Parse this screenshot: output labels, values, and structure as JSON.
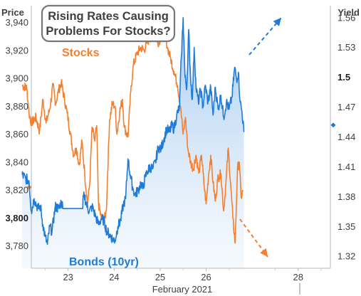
{
  "chart_data": {
    "type": "line",
    "title": "Rising Rates Causing Problems For Stocks?",
    "xlabel": "February 2021",
    "y_left_label": "Price",
    "y_right_label": "Yield",
    "x_ticks": [
      "23",
      "24",
      "25",
      "26",
      "28"
    ],
    "x_range": [
      22.2,
      28.7
    ],
    "y_left_ticks": [
      "3,780",
      "3,800",
      "3,820",
      "3,840",
      "3,860",
      "3,880",
      "3,900",
      "3,920",
      "3,940"
    ],
    "y_left_ticks_values": [
      3780,
      3800,
      3820,
      3840,
      3860,
      3880,
      3900,
      3920,
      3940
    ],
    "y_left_bold_tick": "3,800",
    "y_left_range": [
      3764,
      3952
    ],
    "y_right_ticks": [
      "1.32",
      "1.35",
      "1.38",
      "1.41",
      "1.44",
      "1.47",
      "1.5",
      "1.53",
      "1.56"
    ],
    "y_right_ticks_values": [
      1.32,
      1.35,
      1.38,
      1.41,
      1.44,
      1.47,
      1.5,
      1.53,
      1.56
    ],
    "y_right_bold_tick": "1.5",
    "y_right_range": [
      1.308,
      1.572
    ],
    "left_marker_value": 3822,
    "right_marker_value": 1.452,
    "grid": false,
    "series": [
      {
        "name": "Stocks",
        "axis": "left",
        "color": "#f47f2f",
        "points": [
          [
            22.0,
            3895
          ],
          [
            22.1,
            3893
          ],
          [
            22.15,
            3875
          ],
          [
            22.2,
            3868
          ],
          [
            22.3,
            3872
          ],
          [
            22.38,
            3862
          ],
          [
            22.45,
            3885
          ],
          [
            22.52,
            3868
          ],
          [
            22.6,
            3878
          ],
          [
            22.67,
            3895
          ],
          [
            22.73,
            3882
          ],
          [
            22.78,
            3890
          ],
          [
            22.85,
            3897
          ],
          [
            22.92,
            3885
          ],
          [
            22.98,
            3875
          ],
          [
            23.05,
            3860
          ],
          [
            23.12,
            3845
          ],
          [
            23.18,
            3850
          ],
          [
            23.24,
            3838
          ],
          [
            23.3,
            3855
          ],
          [
            23.36,
            3832
          ],
          [
            23.42,
            3810
          ],
          [
            23.47,
            3825
          ],
          [
            23.52,
            3865
          ],
          [
            23.58,
            3855
          ],
          [
            23.62,
            3866
          ],
          [
            23.66,
            3810
          ],
          [
            23.72,
            3800
          ],
          [
            23.78,
            3798
          ],
          [
            23.83,
            3805
          ],
          [
            23.9,
            3870
          ],
          [
            23.96,
            3882
          ],
          [
            24.02,
            3880
          ],
          [
            24.06,
            3860
          ],
          [
            24.12,
            3876
          ],
          [
            24.18,
            3885
          ],
          [
            24.22,
            3865
          ],
          [
            24.3,
            3858
          ],
          [
            24.36,
            3890
          ],
          [
            24.42,
            3910
          ],
          [
            24.5,
            3918
          ],
          [
            24.58,
            3922
          ],
          [
            24.65,
            3920
          ],
          [
            24.72,
            3926
          ],
          [
            24.8,
            3930
          ],
          [
            24.88,
            3932
          ],
          [
            24.95,
            3925
          ],
          [
            25.02,
            3930
          ],
          [
            25.1,
            3932
          ],
          [
            25.16,
            3922
          ],
          [
            25.22,
            3915
          ],
          [
            25.3,
            3905
          ],
          [
            25.38,
            3895
          ],
          [
            25.44,
            3880
          ],
          [
            25.5,
            3860
          ],
          [
            25.55,
            3872
          ],
          [
            25.6,
            3850
          ],
          [
            25.66,
            3840
          ],
          [
            25.72,
            3835
          ],
          [
            25.78,
            3845
          ],
          [
            25.84,
            3832
          ],
          [
            25.9,
            3845
          ],
          [
            25.95,
            3825
          ],
          [
            26.0,
            3810
          ],
          [
            26.05,
            3830
          ],
          [
            26.1,
            3845
          ],
          [
            26.15,
            3825
          ],
          [
            26.2,
            3812
          ],
          [
            26.25,
            3828
          ],
          [
            26.32,
            3832
          ],
          [
            26.38,
            3805
          ],
          [
            26.43,
            3825
          ],
          [
            26.48,
            3850
          ],
          [
            26.53,
            3825
          ],
          [
            26.58,
            3800
          ],
          [
            26.63,
            3782
          ],
          [
            26.68,
            3835
          ],
          [
            26.72,
            3840
          ],
          [
            26.76,
            3815
          ],
          [
            26.8,
            3820
          ]
        ]
      },
      {
        "name": "Bonds (10yr)",
        "axis": "right",
        "color": "#1e7bd8",
        "points": [
          [
            22.0,
            1.402
          ],
          [
            22.08,
            1.398
          ],
          [
            22.15,
            1.396
          ],
          [
            22.2,
            1.365
          ],
          [
            22.26,
            1.378
          ],
          [
            22.3,
            1.373
          ],
          [
            22.35,
            1.368
          ],
          [
            22.4,
            1.37
          ],
          [
            22.45,
            1.352
          ],
          [
            22.5,
            1.34
          ],
          [
            22.55,
            1.332
          ],
          [
            22.6,
            1.35
          ],
          [
            22.65,
            1.345
          ],
          [
            22.72,
            1.37
          ],
          [
            22.8,
            1.368
          ],
          [
            22.85,
            1.375
          ],
          [
            22.9,
            1.368
          ],
          [
            23.0,
            1.368
          ],
          [
            23.1,
            1.368
          ],
          [
            23.2,
            1.368
          ],
          [
            23.3,
            1.37
          ],
          [
            23.35,
            1.382
          ],
          [
            23.4,
            1.372
          ],
          [
            23.46,
            1.365
          ],
          [
            23.52,
            1.37
          ],
          [
            23.6,
            1.36
          ],
          [
            23.66,
            1.352
          ],
          [
            23.72,
            1.358
          ],
          [
            23.78,
            1.356
          ],
          [
            23.84,
            1.345
          ],
          [
            23.9,
            1.342
          ],
          [
            23.96,
            1.338
          ],
          [
            24.02,
            1.336
          ],
          [
            24.08,
            1.35
          ],
          [
            24.14,
            1.356
          ],
          [
            24.2,
            1.372
          ],
          [
            24.25,
            1.378
          ],
          [
            24.3,
            1.418
          ],
          [
            24.35,
            1.402
          ],
          [
            24.4,
            1.39
          ],
          [
            24.45,
            1.382
          ],
          [
            24.52,
            1.386
          ],
          [
            24.58,
            1.394
          ],
          [
            24.62,
            1.388
          ],
          [
            24.68,
            1.4
          ],
          [
            24.72,
            1.405
          ],
          [
            24.78,
            1.41
          ],
          [
            24.84,
            1.408
          ],
          [
            24.9,
            1.415
          ],
          [
            24.96,
            1.43
          ],
          [
            25.02,
            1.428
          ],
          [
            25.08,
            1.438
          ],
          [
            25.14,
            1.448
          ],
          [
            25.2,
            1.445
          ],
          [
            25.26,
            1.452
          ],
          [
            25.3,
            1.448
          ],
          [
            25.36,
            1.462
          ],
          [
            25.42,
            1.47
          ],
          [
            25.46,
            1.52
          ],
          [
            25.5,
            1.56
          ],
          [
            25.54,
            1.5
          ],
          [
            25.58,
            1.49
          ],
          [
            25.62,
            1.548
          ],
          [
            25.66,
            1.5
          ],
          [
            25.7,
            1.478
          ],
          [
            25.74,
            1.53
          ],
          [
            25.78,
            1.49
          ],
          [
            25.83,
            1.475
          ],
          [
            25.88,
            1.488
          ],
          [
            25.93,
            1.47
          ],
          [
            25.98,
            1.492
          ],
          [
            26.04,
            1.475
          ],
          [
            26.1,
            1.49
          ],
          [
            26.15,
            1.462
          ],
          [
            26.2,
            1.49
          ],
          [
            26.26,
            1.468
          ],
          [
            26.32,
            1.482
          ],
          [
            26.38,
            1.46
          ],
          [
            26.44,
            1.475
          ],
          [
            26.5,
            1.468
          ],
          [
            26.56,
            1.48
          ],
          [
            26.62,
            1.51
          ],
          [
            26.66,
            1.498
          ],
          [
            26.7,
            1.505
          ],
          [
            26.74,
            1.475
          ],
          [
            26.78,
            1.465
          ],
          [
            26.82,
            1.445
          ]
        ]
      }
    ],
    "annotations": [
      {
        "text": "Stocks",
        "color": "#f47f2f"
      },
      {
        "text": "Bonds (10yr)",
        "color": "#1e7bd8"
      }
    ]
  }
}
